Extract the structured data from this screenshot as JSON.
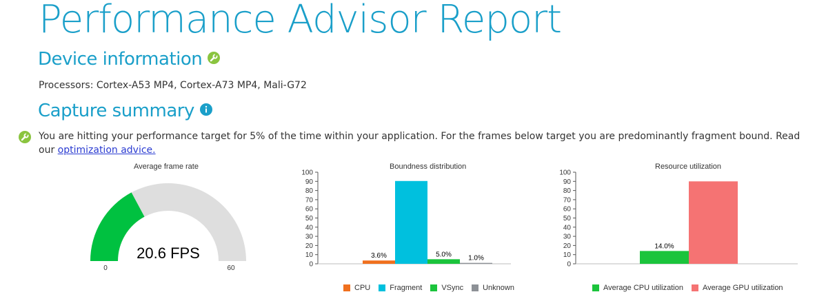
{
  "header": {
    "title": "Performance Advisor Report"
  },
  "device": {
    "title": "Device information",
    "processors": "Processors: Cortex-A53 MP4, Cortex-A73 MP4, Mali-G72"
  },
  "summary": {
    "title": "Capture summary",
    "advice_text": "You are hitting your performance target for 5% of the time within your application. For the frames below target you are predominantly fragment bound. Read our ",
    "advice_link": "optimization advice."
  },
  "colors": {
    "accent": "#1a9fc9",
    "icon_green": "#8ac43f",
    "cpu": "#f0701e",
    "fragment": "#00c0de",
    "vsync": "#1bc43c",
    "unknown": "#8d9196",
    "gauge_fill": "#00c140",
    "gauge_bg": "#dedede",
    "avg_cpu": "#1bc43c",
    "avg_gpu": "#f57373"
  },
  "chart_data": [
    {
      "type": "gauge",
      "title": "Average frame rate",
      "value": 20.6,
      "value_label": "20.6 FPS",
      "min": 0,
      "max": 60,
      "min_label": "0",
      "max_label": "60"
    },
    {
      "type": "bar",
      "title": "Boundness distribution",
      "categories": [
        "CPU",
        "Fragment",
        "VSync",
        "Unknown"
      ],
      "values": [
        3.6,
        90.4,
        5.0,
        1.0
      ],
      "data_labels": [
        "3.6%",
        "",
        "5.0%",
        "1.0%"
      ],
      "ylim": [
        0,
        100
      ],
      "yticks": [
        0,
        10,
        20,
        30,
        40,
        50,
        60,
        70,
        80,
        90,
        100
      ],
      "legend": [
        "CPU",
        "Fragment",
        "VSync",
        "Unknown"
      ],
      "legend_placement": "bottom"
    },
    {
      "type": "bar",
      "title": "Resource utilization",
      "categories": [
        "Average CPU utilization",
        "Average GPU utilization"
      ],
      "values": [
        14.0,
        90.0
      ],
      "data_labels": [
        "14.0%",
        ""
      ],
      "ylim": [
        0,
        100
      ],
      "yticks": [
        0,
        10,
        20,
        30,
        40,
        50,
        60,
        70,
        80,
        90,
        100
      ],
      "legend": [
        "Average CPU utilization",
        "Average GPU utilization"
      ],
      "legend_placement": "bottom"
    }
  ]
}
